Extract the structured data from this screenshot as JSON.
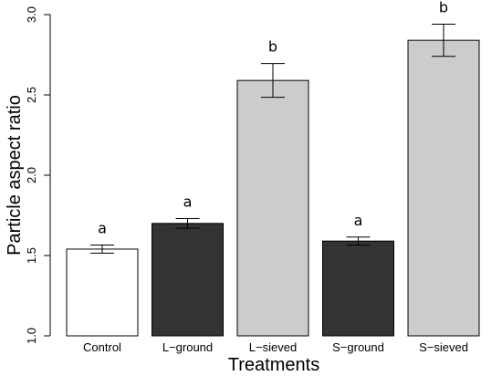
{
  "chart_data": {
    "type": "bar",
    "xlabel": "Treatments",
    "ylabel": "Particle aspect ratio",
    "ylim": [
      1.0,
      3.0
    ],
    "yticks": [
      "1.0",
      "1.5",
      "2.0",
      "2.5",
      "3.0"
    ],
    "categories": [
      "Control",
      "L−ground",
      "L−sieved",
      "S−ground",
      "S−sieved"
    ],
    "values": [
      1.54,
      1.7,
      2.59,
      1.59,
      2.84
    ],
    "errors": [
      0.025,
      0.03,
      0.105,
      0.025,
      0.1
    ],
    "significance": [
      "a",
      "a",
      "b",
      "a",
      "b"
    ],
    "bar_colors": [
      "#ffffff",
      "#333333",
      "#cccccc",
      "#333333",
      "#cccccc"
    ],
    "bar_outline": "#000000",
    "grid": false,
    "legend": "none"
  }
}
